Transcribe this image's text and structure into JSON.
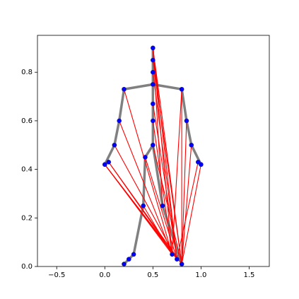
{
  "chart_data": {
    "type": "skeleton",
    "xlim": [
      -0.7,
      1.71
    ],
    "ylim": [
      0,
      0.952
    ],
    "xticks": [
      {
        "value": -0.5,
        "label": "−0.5"
      },
      {
        "value": 0,
        "label": "0.0"
      },
      {
        "value": 0.5,
        "label": "0.5"
      },
      {
        "value": 1,
        "label": "1.0"
      },
      {
        "value": 1.5,
        "label": "1.5"
      }
    ],
    "yticks": [
      {
        "value": 0,
        "label": "0.0"
      },
      {
        "value": 0.2,
        "label": "0.2"
      },
      {
        "value": 0.4,
        "label": "0.4"
      },
      {
        "value": 0.6,
        "label": "0.6"
      },
      {
        "value": 0.8,
        "label": "0.8"
      }
    ],
    "bones": {
      "color": "#808080",
      "segments": [
        {
          "x": [
            0.5,
            0.5
          ],
          "y": [
            0.9,
            0.75
          ]
        },
        {
          "x": [
            0.5,
            0.5
          ],
          "y": [
            0.75,
            0.5
          ]
        },
        {
          "x": [
            0.2,
            0.5
          ],
          "y": [
            0.73,
            0.75
          ]
        },
        {
          "x": [
            0.5,
            0.8
          ],
          "y": [
            0.75,
            0.73
          ]
        },
        {
          "x": [
            0.2,
            0.15
          ],
          "y": [
            0.73,
            0.6
          ]
        },
        {
          "x": [
            0.15,
            0.1
          ],
          "y": [
            0.6,
            0.5
          ]
        },
        {
          "x": [
            0.1,
            0.0
          ],
          "y": [
            0.5,
            0.42
          ]
        },
        {
          "x": [
            0.8,
            0.85
          ],
          "y": [
            0.73,
            0.6
          ]
        },
        {
          "x": [
            0.85,
            0.9
          ],
          "y": [
            0.6,
            0.5
          ]
        },
        {
          "x": [
            0.9,
            1.0
          ],
          "y": [
            0.5,
            0.42
          ]
        },
        {
          "x": [
            0.5,
            0.42
          ],
          "y": [
            0.5,
            0.45
          ]
        },
        {
          "x": [
            0.42,
            0.4
          ],
          "y": [
            0.45,
            0.25
          ]
        },
        {
          "x": [
            0.4,
            0.3
          ],
          "y": [
            0.25,
            0.05
          ]
        },
        {
          "x": [
            0.3,
            0.2
          ],
          "y": [
            0.05,
            0.01
          ]
        },
        {
          "x": [
            0.5,
            0.6
          ],
          "y": [
            0.5,
            0.25
          ]
        },
        {
          "x": [
            0.6,
            0.8
          ],
          "y": [
            0.25,
            0.01
          ]
        }
      ]
    },
    "links": {
      "color": "#ff0000",
      "segments": [
        {
          "x": [
            0.0,
            0.8
          ],
          "y": [
            0.42,
            0.01
          ]
        },
        {
          "x": [
            0.0,
            0.75
          ],
          "y": [
            0.42,
            0.03
          ]
        },
        {
          "x": [
            0.0,
            0.7
          ],
          "y": [
            0.42,
            0.05
          ]
        },
        {
          "x": [
            0.04,
            0.8
          ],
          "y": [
            0.43,
            0.01
          ]
        },
        {
          "x": [
            0.04,
            0.75
          ],
          "y": [
            0.43,
            0.03
          ]
        },
        {
          "x": [
            0.1,
            0.75
          ],
          "y": [
            0.5,
            0.03
          ]
        },
        {
          "x": [
            0.15,
            0.7
          ],
          "y": [
            0.6,
            0.05
          ]
        },
        {
          "x": [
            0.2,
            0.7
          ],
          "y": [
            0.73,
            0.05
          ]
        },
        {
          "x": [
            0.5,
            0.8
          ],
          "y": [
            0.9,
            0.01
          ]
        },
        {
          "x": [
            0.5,
            0.75
          ],
          "y": [
            0.9,
            0.03
          ]
        },
        {
          "x": [
            0.5,
            0.7
          ],
          "y": [
            0.9,
            0.05
          ]
        },
        {
          "x": [
            0.5,
            0.8
          ],
          "y": [
            0.85,
            0.01
          ]
        },
        {
          "x": [
            0.5,
            0.75
          ],
          "y": [
            0.8,
            0.03
          ]
        },
        {
          "x": [
            0.8,
            0.8
          ],
          "y": [
            0.73,
            0.01
          ]
        },
        {
          "x": [
            0.8,
            0.7
          ],
          "y": [
            0.73,
            0.05
          ]
        },
        {
          "x": [
            0.85,
            0.8
          ],
          "y": [
            0.6,
            0.01
          ]
        },
        {
          "x": [
            1.0,
            0.8
          ],
          "y": [
            0.42,
            0.01
          ]
        },
        {
          "x": [
            0.97,
            0.75
          ],
          "y": [
            0.43,
            0.03
          ]
        },
        {
          "x": [
            0.9,
            0.8
          ],
          "y": [
            0.5,
            0.01
          ]
        },
        {
          "x": [
            0.5,
            0.7
          ],
          "y": [
            0.6,
            0.05
          ]
        },
        {
          "x": [
            0.5,
            0.75
          ],
          "y": [
            0.67,
            0.03
          ]
        },
        {
          "x": [
            0.42,
            0.75
          ],
          "y": [
            0.45,
            0.03
          ]
        },
        {
          "x": [
            0.4,
            0.7
          ],
          "y": [
            0.25,
            0.05
          ]
        },
        {
          "x": [
            0.5,
            0.6
          ],
          "y": [
            0.9,
            0.25
          ]
        },
        {
          "x": [
            0.5,
            0.8
          ],
          "y": [
            0.5,
            0.01
          ]
        }
      ]
    },
    "points": {
      "color": "#0000ff",
      "x": [
        0.5,
        0.5,
        0.5,
        0.5,
        0.2,
        0.8,
        0.5,
        0.5,
        0.5,
        0.15,
        0.1,
        0.04,
        0.0,
        0.85,
        0.9,
        0.97,
        1.0,
        0.42,
        0.4,
        0.3,
        0.25,
        0.2,
        0.6,
        0.7,
        0.75,
        0.8
      ],
      "y": [
        0.9,
        0.85,
        0.8,
        0.75,
        0.73,
        0.73,
        0.67,
        0.6,
        0.5,
        0.6,
        0.5,
        0.43,
        0.42,
        0.6,
        0.5,
        0.43,
        0.42,
        0.45,
        0.25,
        0.05,
        0.03,
        0.01,
        0.25,
        0.05,
        0.03,
        0.01
      ]
    }
  }
}
